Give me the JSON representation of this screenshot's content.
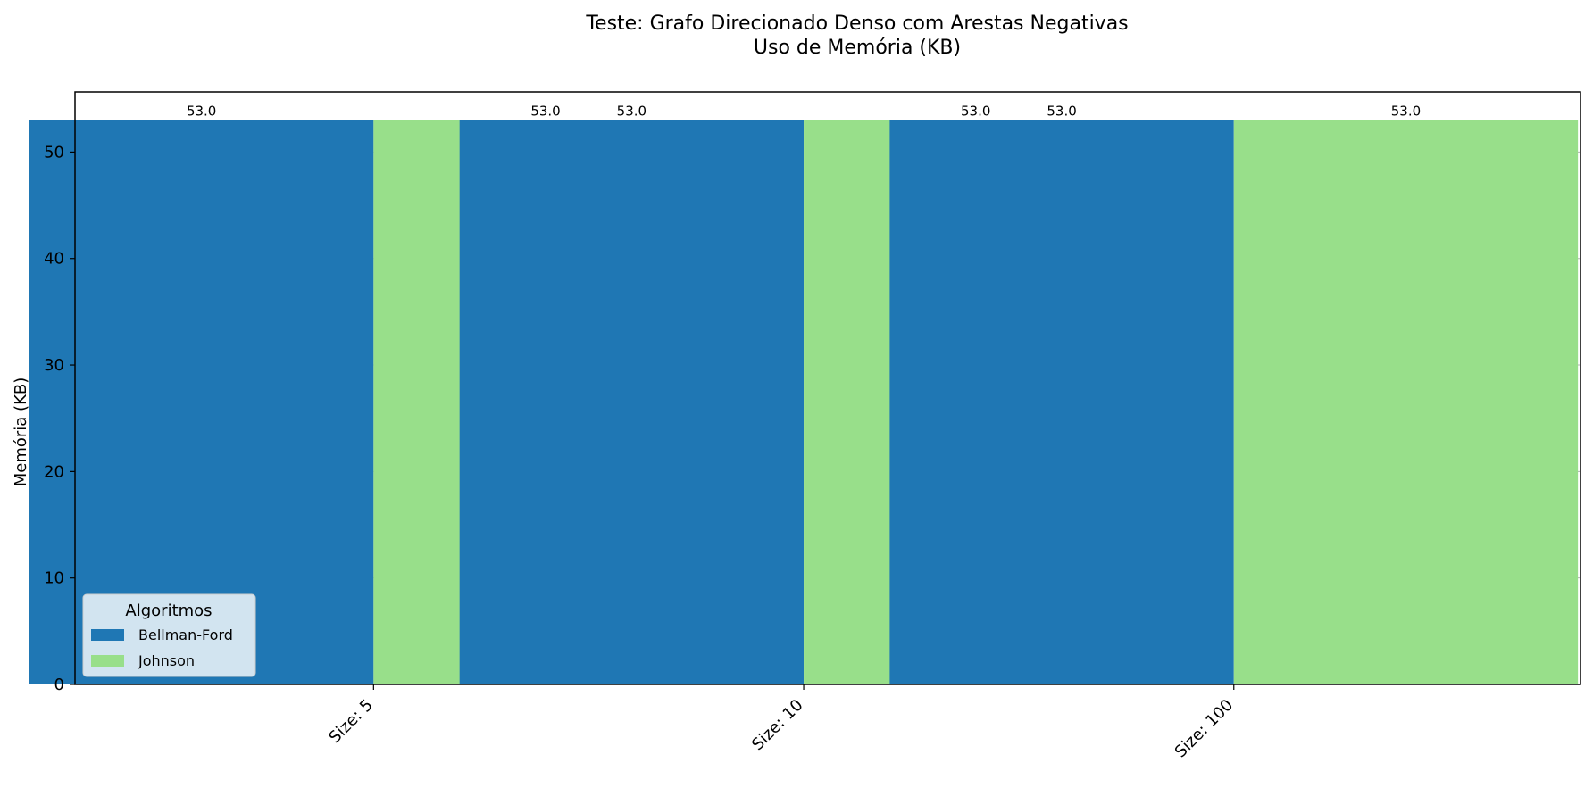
{
  "chart_data": {
    "type": "bar",
    "title": "Teste: Grafo Direcionado Denso com Arestas Negativas",
    "subtitle": "Uso de Memória (KB)",
    "ylabel": "Memória (KB)",
    "xlabel": "",
    "categories": [
      "Size: 5",
      "Size: 10",
      "Size: 100"
    ],
    "series": [
      {
        "name": "Bellman-Ford",
        "values": [
          53.0,
          53.0,
          53.0
        ],
        "color": "#1f77b4"
      },
      {
        "name": "Johnson",
        "values": [
          53.0,
          53.0,
          53.0
        ],
        "color": "#98df8a"
      }
    ],
    "value_labels": [
      [
        "53.0",
        "53.0",
        "53.0"
      ],
      [
        "53.0",
        "53.0",
        "53.0"
      ]
    ],
    "ylim": [
      0,
      55.65
    ],
    "yticks": [
      0,
      10,
      20,
      30,
      40,
      50
    ],
    "ytick_labels": [
      "0",
      "10",
      "20",
      "30",
      "40",
      "50"
    ],
    "grid": "y-dashed",
    "legend": {
      "title": "Algoritmos",
      "position": "lower-left"
    }
  }
}
